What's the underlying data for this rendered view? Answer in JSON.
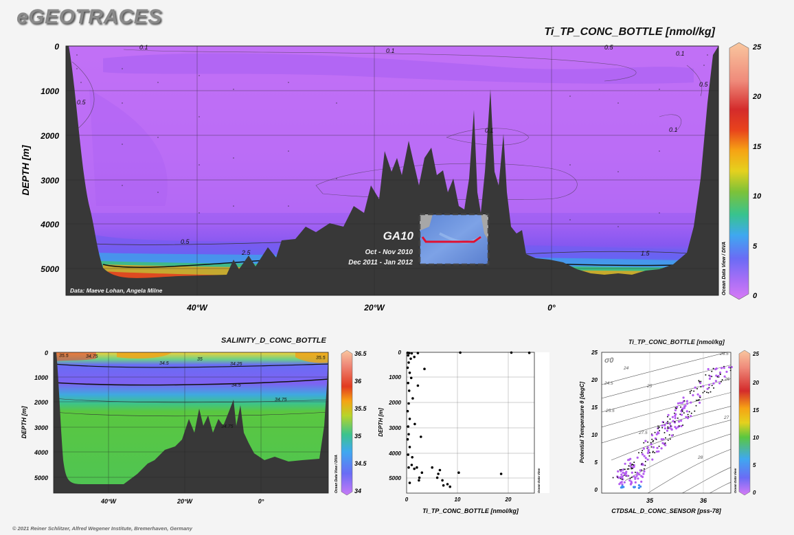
{
  "brand": "eGEOTRACES",
  "copyright": "© 2021 Reiner Schlitzer, Alfred Wegener Institute, Bremerhaven, Germany",
  "odv_label": "Ocean Data View / DIVA",
  "odv_label_short": "Ocean Data View",
  "chart_data": [
    {
      "type": "heatmap",
      "title": "Ti_TP_CONC_BOTTLE [nmol/kg]",
      "ylabel": "DEPTH [m]",
      "xlabel": "",
      "x_ticks": [
        "40°W",
        "20°W",
        "0°"
      ],
      "y_ticks": [
        "0",
        "1000",
        "2000",
        "3000",
        "4000",
        "5000"
      ],
      "ylim": [
        5600,
        0
      ],
      "colorbar_ticks": [
        "0",
        "5",
        "10",
        "15",
        "20",
        "25"
      ],
      "colorbar_range": [
        0,
        25
      ],
      "contour_labels": [
        "0.1",
        "0.1",
        "0.1",
        "0.5",
        "0.5",
        "0.5",
        "2.5",
        "1.5",
        "0.1",
        "0.5",
        "0.1"
      ],
      "annotation_data": "Data: Maeve Lohan, Angela Milne",
      "inset": {
        "section": "GA10",
        "dates1": "Oct - Nov 2010",
        "dates2": "Dec 2011 - Jan 2012"
      }
    },
    {
      "type": "heatmap",
      "title": "SALINITY_D_CONC_BOTTLE",
      "ylabel": "DEPTH [m]",
      "x_ticks": [
        "40°W",
        "20°W",
        "0°"
      ],
      "y_ticks": [
        "0",
        "1000",
        "2000",
        "3000",
        "4000",
        "5000"
      ],
      "colorbar_ticks": [
        "34",
        "34.5",
        "35",
        "35.5",
        "36",
        "36.5"
      ],
      "colorbar_range": [
        34,
        36.5
      ],
      "contour_labels": [
        "34.75",
        "35",
        "34.5",
        "34.25",
        "34.5",
        "34.75",
        "34.75",
        "35.5",
        "35.5"
      ]
    },
    {
      "type": "scatter",
      "xlabel": "Ti_TP_CONC_BOTTLE [nmol/kg]",
      "ylabel": "DEPTH [m]",
      "x_ticks": [
        "0",
        "10",
        "20"
      ],
      "y_ticks": [
        "0",
        "1000",
        "2000",
        "3000",
        "4000",
        "5000"
      ],
      "xlim": [
        0,
        25
      ],
      "ylim": [
        5500,
        0
      ],
      "points": [
        [
          0.2,
          20
        ],
        [
          0.5,
          30
        ],
        [
          1.0,
          40
        ],
        [
          2.2,
          30
        ],
        [
          10.5,
          10
        ],
        [
          20.5,
          10
        ],
        [
          24,
          20
        ],
        [
          0.3,
          120
        ],
        [
          0.8,
          250
        ],
        [
          1.5,
          180
        ],
        [
          0.4,
          400
        ],
        [
          0.2,
          600
        ],
        [
          0.6,
          800
        ],
        [
          0.9,
          1000
        ],
        [
          3.5,
          650
        ],
        [
          0.3,
          1200
        ],
        [
          0.5,
          1500
        ],
        [
          1.2,
          1800
        ],
        [
          0.4,
          2000
        ],
        [
          0.2,
          2300
        ],
        [
          2.2,
          1300
        ],
        [
          0.6,
          2600
        ],
        [
          0.3,
          2900
        ],
        [
          1.6,
          2800
        ],
        [
          0.4,
          3200
        ],
        [
          0.2,
          3400
        ],
        [
          2.8,
          3300
        ],
        [
          0.6,
          3700
        ],
        [
          0.3,
          4000
        ],
        [
          1.1,
          4100
        ],
        [
          0.4,
          4500
        ],
        [
          1.0,
          4400
        ],
        [
          2.0,
          4500
        ],
        [
          3.0,
          4700
        ],
        [
          2.5,
          4900
        ],
        [
          6.5,
          4600
        ],
        [
          6.2,
          4750
        ],
        [
          7.0,
          5000
        ],
        [
          6.0,
          4900
        ],
        [
          8.0,
          5150
        ],
        [
          8.5,
          5250
        ],
        [
          10.2,
          4700
        ],
        [
          18.5,
          4750
        ],
        [
          5.0,
          4500
        ],
        [
          7.2,
          5200
        ],
        [
          2.4,
          5000
        ],
        [
          0.6,
          5100
        ],
        [
          1.5,
          4550
        ]
      ]
    },
    {
      "type": "scatter",
      "title": "Ti_TP_CONC_BOTTLE [nmol/kg]",
      "xlabel": "CTDSAL_D_CONC_SENSOR [pss-78]",
      "ylabel": "Potential Temperature θ [degC]",
      "x_ticks": [
        "35",
        "36"
      ],
      "y_ticks": [
        "0",
        "5",
        "10",
        "15",
        "20",
        "25"
      ],
      "xlim": [
        34.1,
        36.5
      ],
      "ylim": [
        -0.5,
        25
      ],
      "sigma_label": "σ0",
      "isopycnal_labels": [
        "24",
        "24.5",
        "25",
        "25.5",
        "26",
        "26.5",
        "27",
        "27.5",
        "28"
      ],
      "colorbar_ticks": [
        "0",
        "5",
        "10",
        "15",
        "20",
        "25"
      ]
    }
  ]
}
